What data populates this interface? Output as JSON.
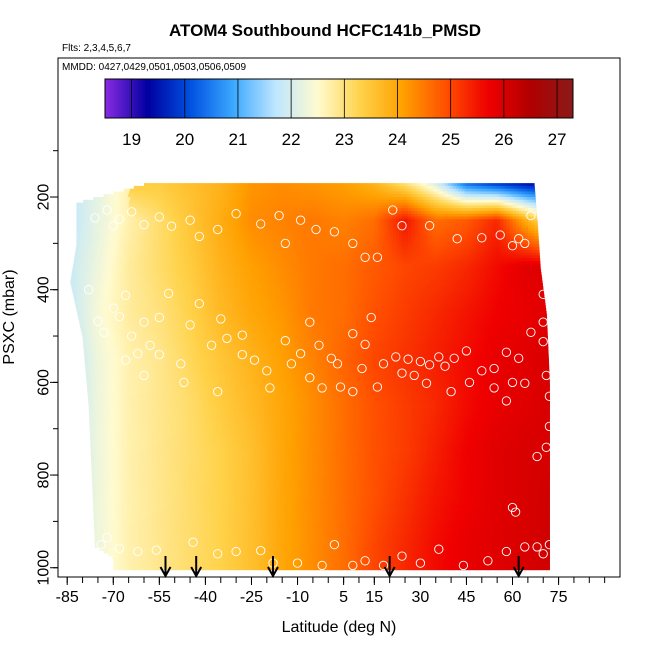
{
  "chart_data": {
    "type": "heatmap",
    "title": "ATOM4 Southbound HCFC141b_PMSD",
    "flights_label": "Flts: 2,3,4,5,6,7",
    "dates_label": "MMDD: 0427,0429,0501,0503,0506,0509",
    "xlabel": "Latitude (deg N)",
    "ylabel": "PSXC (mbar)",
    "xlim": [
      -88,
      95
    ],
    "ylim": [
      1020,
      -100
    ],
    "x_ticks": [
      -85,
      -70,
      -55,
      -40,
      -25,
      -10,
      5,
      15,
      30,
      45,
      60,
      75
    ],
    "y_ticks": [
      200,
      400,
      600,
      800,
      1000
    ],
    "colorbar": {
      "min": 18.5,
      "max": 27.3,
      "ticks": [
        19,
        20,
        21,
        22,
        23,
        24,
        25,
        26,
        27
      ],
      "colors": [
        "#8a2be2",
        "#0000a0",
        "#0050e0",
        "#3aa7ff",
        "#bde6ff",
        "#fffbd0",
        "#ffd24a",
        "#ffa000",
        "#ff5000",
        "#f00000",
        "#b00000",
        "#8b1a1a"
      ]
    },
    "field": {
      "lat_nodes": [
        -83,
        -75,
        -65,
        -55,
        -45,
        -35,
        -25,
        -15,
        -5,
        5,
        15,
        25,
        35,
        45,
        55,
        65,
        72
      ],
      "pressure_levels": [
        170,
        250,
        350,
        450,
        550,
        650,
        750,
        850,
        950
      ],
      "values": [
        [
          null,
          null,
          null,
          23.4,
          23.6,
          23.8,
          24.2,
          24.3,
          24.2,
          24.1,
          23.8,
          23.0,
          22.0,
          20.3,
          19.8,
          19.4,
          null
        ],
        [
          21.8,
          22.2,
          22.7,
          23.1,
          23.5,
          23.9,
          24.3,
          24.4,
          24.5,
          24.4,
          24.6,
          25.5,
          24.6,
          24.8,
          25.3,
          23.8,
          22.8
        ],
        [
          21.9,
          22.3,
          22.8,
          23.1,
          23.4,
          23.8,
          24.1,
          24.3,
          24.5,
          24.6,
          24.8,
          25.0,
          25.1,
          25.3,
          25.6,
          25.9,
          25.9
        ],
        [
          21.9,
          22.4,
          22.8,
          23.0,
          23.3,
          23.7,
          24.0,
          24.2,
          24.5,
          24.6,
          24.9,
          25.1,
          25.3,
          25.5,
          25.7,
          25.8,
          25.9
        ],
        [
          21.8,
          22.3,
          22.7,
          22.9,
          23.2,
          23.5,
          23.8,
          24.1,
          24.4,
          24.7,
          25.0,
          25.2,
          25.4,
          25.6,
          25.8,
          25.9,
          26.0
        ],
        [
          21.8,
          22.3,
          22.7,
          22.9,
          23.1,
          23.4,
          23.7,
          24.0,
          24.3,
          24.6,
          24.9,
          25.1,
          25.3,
          25.6,
          25.8,
          25.9,
          26.0
        ],
        [
          21.9,
          22.3,
          22.7,
          22.9,
          23.1,
          23.3,
          23.6,
          24.0,
          24.3,
          24.6,
          24.9,
          25.1,
          25.4,
          25.7,
          25.9,
          26.0,
          26.0
        ],
        [
          21.9,
          22.3,
          22.7,
          22.9,
          23.1,
          23.3,
          23.6,
          24.0,
          24.3,
          24.6,
          24.9,
          25.2,
          25.5,
          25.7,
          25.9,
          26.0,
          26.1
        ],
        [
          21.9,
          22.3,
          22.7,
          22.9,
          23.1,
          23.3,
          23.6,
          24.0,
          24.3,
          24.6,
          25.0,
          25.3,
          25.6,
          25.8,
          25.9,
          26.0,
          26.1
        ]
      ],
      "west_edge_by_pressure": [
        [
          170,
          -60
        ],
        [
          210,
          -82
        ],
        [
          300,
          -82
        ],
        [
          380,
          -84
        ],
        [
          500,
          -80
        ],
        [
          650,
          -78
        ],
        [
          800,
          -77
        ],
        [
          950,
          -76
        ],
        [
          975,
          -70
        ],
        [
          1000,
          -70
        ]
      ],
      "east_edge_by_pressure": [
        [
          170,
          67
        ],
        [
          250,
          68
        ],
        [
          350,
          69
        ],
        [
          450,
          71
        ],
        [
          600,
          72
        ],
        [
          1000,
          72
        ]
      ]
    },
    "observations": [
      [
        -76,
        245
      ],
      [
        -72,
        228
      ],
      [
        -70,
        262
      ],
      [
        -68,
        248
      ],
      [
        -64,
        232
      ],
      [
        -60,
        260
      ],
      [
        -55,
        243
      ],
      [
        -51,
        263
      ],
      [
        -45,
        250
      ],
      [
        -42,
        285
      ],
      [
        -36,
        270
      ],
      [
        -30,
        236
      ],
      [
        -22,
        258
      ],
      [
        -16,
        240
      ],
      [
        -14,
        300
      ],
      [
        -9,
        250
      ],
      [
        -4,
        270
      ],
      [
        2,
        275
      ],
      [
        8,
        300
      ],
      [
        12,
        330
      ],
      [
        16,
        330
      ],
      [
        21,
        228
      ],
      [
        24,
        262
      ],
      [
        33,
        262
      ],
      [
        42,
        290
      ],
      [
        50,
        288
      ],
      [
        56,
        282
      ],
      [
        60,
        305
      ],
      [
        62,
        290
      ],
      [
        64,
        300
      ],
      [
        66,
        240
      ],
      [
        -78,
        400
      ],
      [
        -75,
        468
      ],
      [
        -73,
        492
      ],
      [
        -70,
        440
      ],
      [
        -68,
        458
      ],
      [
        -66,
        412
      ],
      [
        -64,
        500
      ],
      [
        -62,
        538
      ],
      [
        -60,
        470
      ],
      [
        -58,
        520
      ],
      [
        -55,
        460
      ],
      [
        -52,
        408
      ],
      [
        -48,
        560
      ],
      [
        -45,
        476
      ],
      [
        -42,
        430
      ],
      [
        -38,
        520
      ],
      [
        -35,
        463
      ],
      [
        -33,
        505
      ],
      [
        -28,
        498
      ],
      [
        -24,
        552
      ],
      [
        -19,
        612
      ],
      [
        -14,
        510
      ],
      [
        -9,
        538
      ],
      [
        -6,
        470
      ],
      [
        -3,
        520
      ],
      [
        1,
        548
      ],
      [
        3,
        560
      ],
      [
        8,
        495
      ],
      [
        12,
        518
      ],
      [
        14,
        460
      ],
      [
        18,
        560
      ],
      [
        22,
        545
      ],
      [
        26,
        550
      ],
      [
        28,
        585
      ],
      [
        30,
        555
      ],
      [
        33,
        562
      ],
      [
        36,
        545
      ],
      [
        38,
        565
      ],
      [
        41,
        548
      ],
      [
        45,
        532
      ],
      [
        50,
        575
      ],
      [
        54,
        570
      ],
      [
        58,
        535
      ],
      [
        62,
        548
      ],
      [
        66,
        492
      ],
      [
        -66,
        552
      ],
      [
        -60,
        585
      ],
      [
        -55,
        540
      ],
      [
        -47,
        600
      ],
      [
        -36,
        620
      ],
      [
        -28,
        540
      ],
      [
        -20,
        575
      ],
      [
        -12,
        560
      ],
      [
        -6,
        590
      ],
      [
        -2,
        612
      ],
      [
        4,
        610
      ],
      [
        8,
        620
      ],
      [
        11,
        570
      ],
      [
        16,
        610
      ],
      [
        24,
        580
      ],
      [
        32,
        602
      ],
      [
        40,
        620
      ],
      [
        46,
        600
      ],
      [
        54,
        612
      ],
      [
        58,
        640
      ],
      [
        60,
        600
      ],
      [
        64,
        602
      ],
      [
        70,
        410
      ],
      [
        70,
        470
      ],
      [
        70,
        512
      ],
      [
        71,
        585
      ],
      [
        72,
        630
      ],
      [
        -74,
        950
      ],
      [
        -72,
        935
      ],
      [
        -68,
        958
      ],
      [
        -62,
        965
      ],
      [
        -56,
        962
      ],
      [
        -44,
        945
      ],
      [
        -36,
        970
      ],
      [
        -30,
        965
      ],
      [
        -22,
        963
      ],
      [
        -18,
        990
      ],
      [
        -10,
        990
      ],
      [
        -2,
        995
      ],
      [
        2,
        950
      ],
      [
        8,
        995
      ],
      [
        12,
        985
      ],
      [
        18,
        995
      ],
      [
        24,
        975
      ],
      [
        30,
        990
      ],
      [
        36,
        960
      ],
      [
        44,
        995
      ],
      [
        52,
        985
      ],
      [
        58,
        965
      ],
      [
        60,
        870
      ],
      [
        64,
        955
      ],
      [
        68,
        955
      ],
      [
        70,
        970
      ],
      [
        72,
        950
      ],
      [
        71,
        740
      ],
      [
        72,
        695
      ],
      [
        68,
        760
      ],
      [
        61,
        880
      ]
    ],
    "arrows_lat": [
      -53,
      -43,
      -18,
      20,
      62
    ]
  }
}
